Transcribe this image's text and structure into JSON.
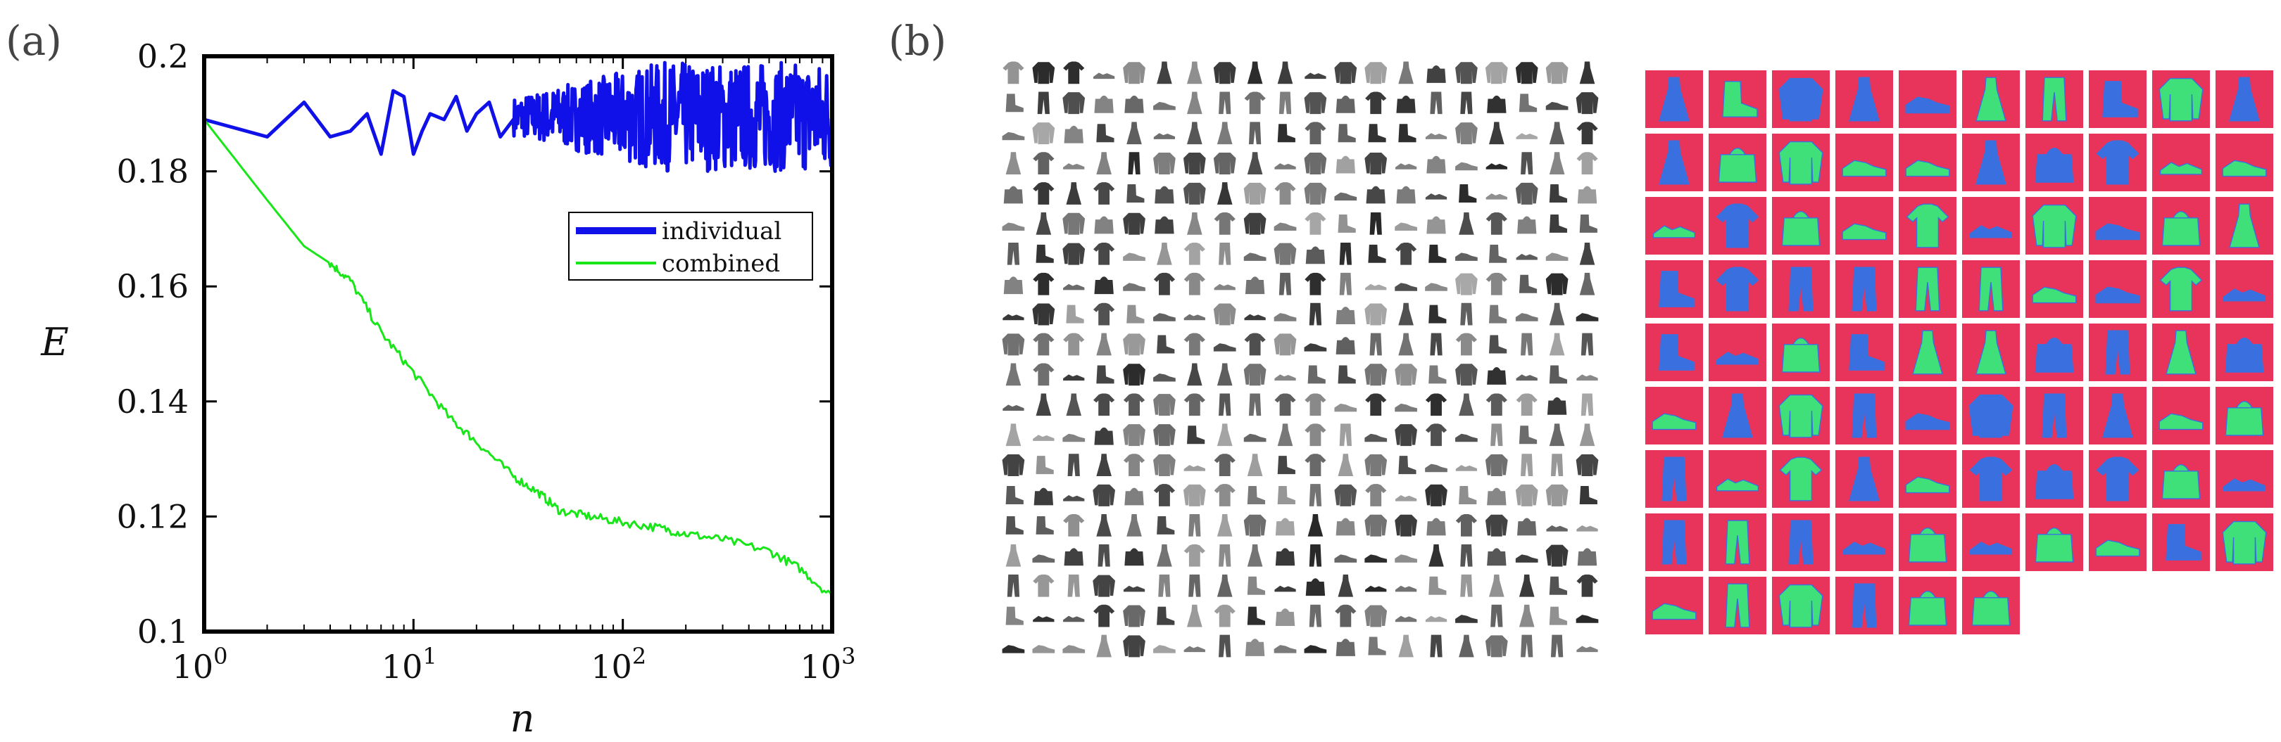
{
  "panels": {
    "a": "(a)",
    "b": "(b)"
  },
  "colors": {
    "individual": "#1010e8",
    "combined": "#19e619",
    "tile_red": "#e8345a",
    "tile_blue": "#3a6fe0",
    "tile_green": "#3fe07a",
    "garment_dark": "#3a3a3a",
    "garment_light": "#9a9a9a"
  },
  "chart_data": {
    "type": "line",
    "xscale": "log",
    "xlim": [
      1,
      1000
    ],
    "ylim": [
      0.1,
      0.2
    ],
    "xlabel": "n",
    "ylabel": "E",
    "x_ticks": [
      {
        "base": "10",
        "exp": "0",
        "value": 1
      },
      {
        "base": "10",
        "exp": "1",
        "value": 10
      },
      {
        "base": "10",
        "exp": "2",
        "value": 100
      },
      {
        "base": "10",
        "exp": "3",
        "value": 1000
      }
    ],
    "y_ticks": [
      "0.1",
      "0.12",
      "0.14",
      "0.16",
      "0.18",
      "0.2"
    ],
    "legend_position": "upper-right",
    "grid": false,
    "series": [
      {
        "name": "individual",
        "color": "#1010e8",
        "x": [
          1,
          2,
          3,
          4,
          5,
          6,
          7,
          8,
          9,
          10,
          11,
          12,
          14,
          16,
          18,
          20,
          23,
          26,
          30,
          35,
          40,
          50,
          60,
          80,
          100,
          150,
          200,
          300,
          400,
          600,
          800,
          1000
        ],
        "y": [
          0.189,
          0.186,
          0.192,
          0.186,
          0.187,
          0.19,
          0.183,
          0.194,
          0.193,
          0.183,
          0.187,
          0.19,
          0.189,
          0.193,
          0.187,
          0.19,
          0.192,
          0.186,
          0.189,
          0.19,
          0.187,
          0.189,
          0.187,
          0.189,
          0.188,
          0.189,
          0.187,
          0.189,
          0.188,
          0.189,
          0.188,
          0.189
        ],
        "band": {
          "from_n": 30,
          "min": 0.18,
          "max": 0.199
        }
      },
      {
        "name": "combined",
        "color": "#19e619",
        "x": [
          1,
          2,
          3,
          4,
          5,
          7,
          10,
          15,
          20,
          30,
          40,
          50,
          70,
          100,
          150,
          200,
          300,
          500,
          700,
          1000
        ],
        "y": [
          0.189,
          0.175,
          0.167,
          0.164,
          0.161,
          0.152,
          0.145,
          0.137,
          0.133,
          0.127,
          0.124,
          0.121,
          0.12,
          0.119,
          0.118,
          0.117,
          0.116,
          0.114,
          0.111,
          0.106
        ]
      }
    ]
  },
  "image_grids": {
    "fashion": {
      "rows": 20,
      "cols": 20
    },
    "features": {
      "rows": 9,
      "cols": 10,
      "last_row_count": 6
    }
  }
}
